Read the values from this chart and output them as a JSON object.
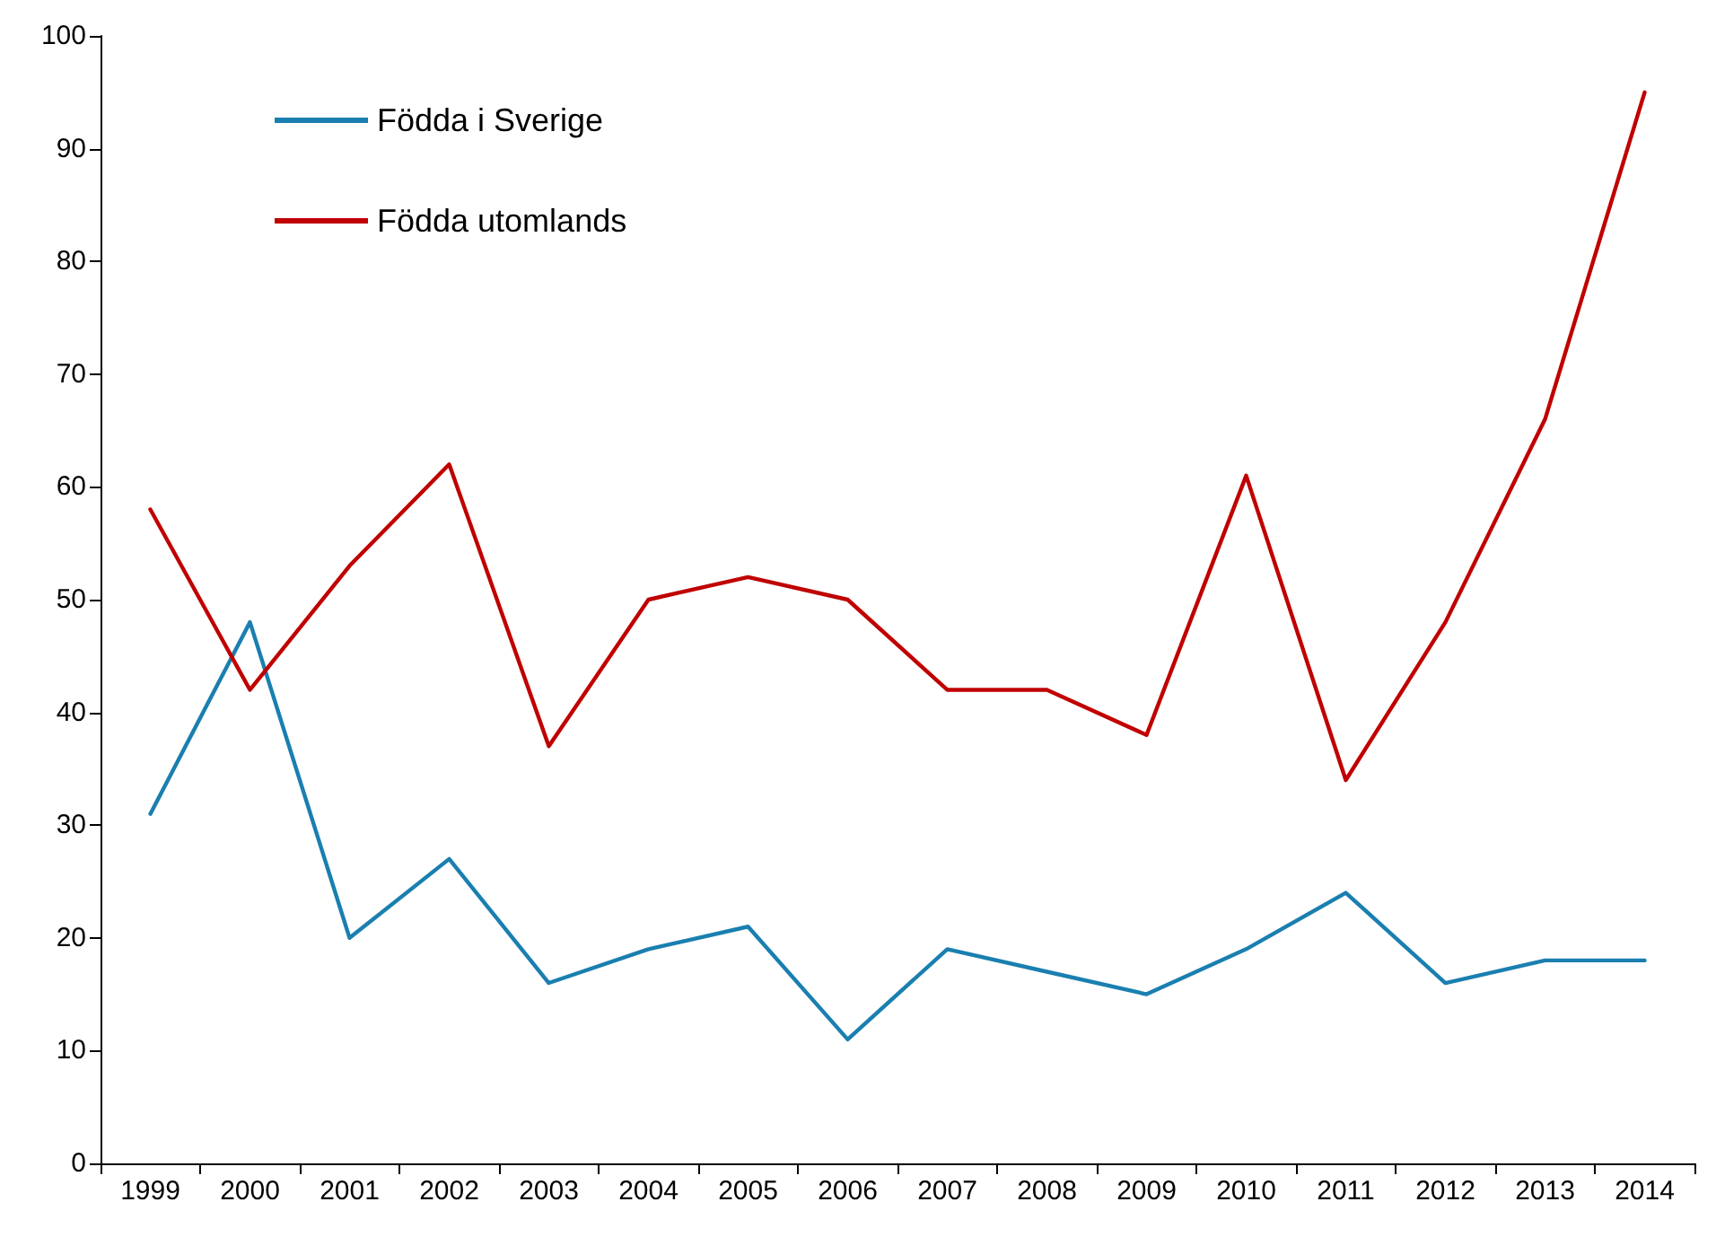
{
  "chart_data": {
    "type": "line",
    "categories": [
      "1999",
      "2000",
      "2001",
      "2002",
      "2003",
      "2004",
      "2005",
      "2006",
      "2007",
      "2008",
      "2009",
      "2010",
      "2011",
      "2012",
      "2013",
      "2014"
    ],
    "series": [
      {
        "name": "Födda i Sverige",
        "color": "#1a7fb0",
        "values": [
          31,
          48,
          20,
          27,
          16,
          19,
          21,
          11,
          19,
          17,
          15,
          19,
          24,
          16,
          18,
          18
        ]
      },
      {
        "name": "Födda utomlands",
        "color": "#c00000",
        "values": [
          58,
          42,
          53,
          62,
          37,
          50,
          52,
          50,
          42,
          42,
          38,
          61,
          34,
          48,
          66,
          95
        ]
      }
    ],
    "ylim": [
      0,
      100
    ],
    "yticks": [
      0,
      10,
      20,
      30,
      40,
      50,
      60,
      70,
      80,
      90,
      100
    ],
    "grid": false,
    "legend": "top left",
    "marker": "none",
    "line_style": "solid"
  }
}
